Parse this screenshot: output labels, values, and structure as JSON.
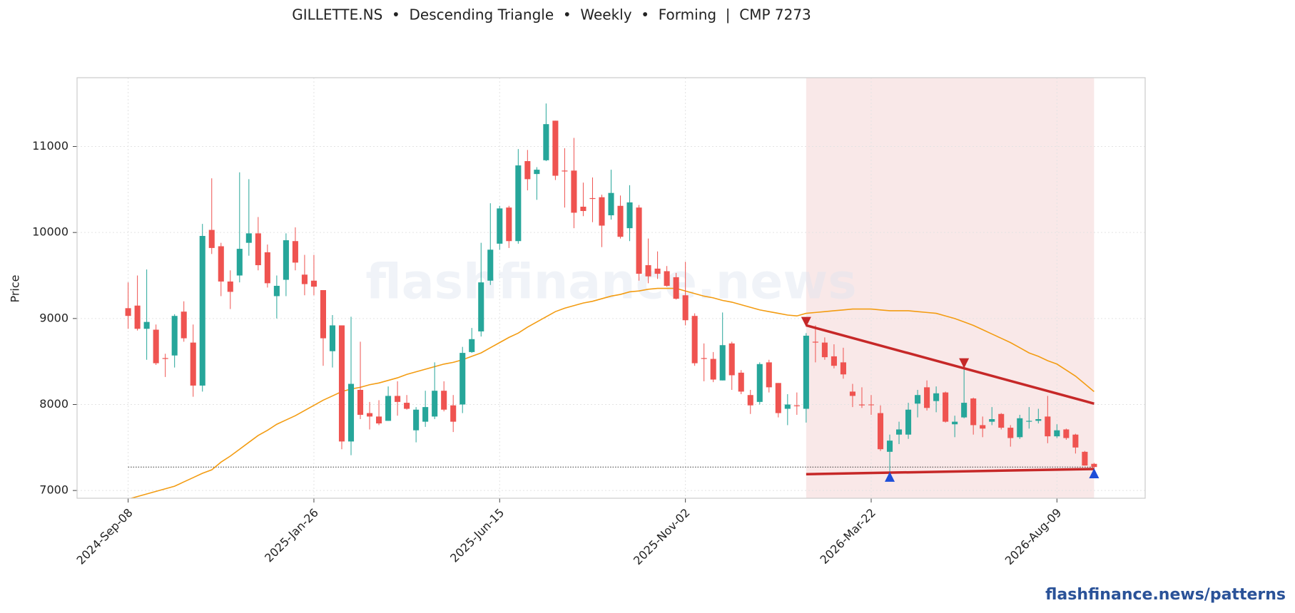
{
  "chart_data": {
    "type": "candlestick",
    "title": "GILLETTE.NS  •  Descending Triangle  •  Weekly  •  Forming  |  CMP 7273",
    "ylabel": "Price",
    "watermark": "flashfinance.news",
    "x": [
      "2024-Sep-08",
      "2024-Sep-15",
      "2024-Sep-22",
      "2024-Sep-29",
      "2024-Oct-06",
      "2024-Oct-13",
      "2024-Oct-20",
      "2024-Oct-27",
      "2024-Nov-03",
      "2024-Nov-10",
      "2024-Nov-17",
      "2024-Nov-24",
      "2024-Dec-01",
      "2024-Dec-08",
      "2024-Dec-15",
      "2024-Dec-22",
      "2024-Dec-29",
      "2025-Jan-05",
      "2025-Jan-12",
      "2025-Jan-19",
      "2025-Jan-26",
      "2025-Feb-02",
      "2025-Feb-09",
      "2025-Feb-16",
      "2025-Feb-23",
      "2025-Mar-02",
      "2025-Mar-09",
      "2025-Mar-16",
      "2025-Mar-23",
      "2025-Mar-30",
      "2025-Apr-06",
      "2025-Apr-13",
      "2025-Apr-20",
      "2025-Apr-27",
      "2025-May-04",
      "2025-May-11",
      "2025-May-18",
      "2025-May-25",
      "2025-Jun-01",
      "2025-Jun-08",
      "2025-Jun-15",
      "2025-Jun-22",
      "2025-Jun-29",
      "2025-Jul-06",
      "2025-Jul-13",
      "2025-Jul-20",
      "2025-Jul-27",
      "2025-Aug-03",
      "2025-Aug-10",
      "2025-Aug-17",
      "2025-Aug-24",
      "2025-Aug-31",
      "2025-Sep-07",
      "2025-Sep-14",
      "2025-Sep-21",
      "2025-Sep-28",
      "2025-Oct-05",
      "2025-Oct-12",
      "2025-Oct-19",
      "2025-Oct-26",
      "2025-Nov-02",
      "2025-Nov-09",
      "2025-Nov-16",
      "2025-Nov-23",
      "2025-Nov-30",
      "2025-Dec-07",
      "2025-Dec-14",
      "2025-Dec-21",
      "2025-Dec-28",
      "2026-Jan-04",
      "2026-Jan-11",
      "2026-Jan-18",
      "2026-Jan-25",
      "2026-Feb-01",
      "2026-Feb-08",
      "2026-Feb-15",
      "2026-Feb-22",
      "2026-Mar-01",
      "2026-Mar-08",
      "2026-Mar-15",
      "2026-Mar-22",
      "2026-Mar-29",
      "2026-Apr-05",
      "2026-Apr-12",
      "2026-Apr-19",
      "2026-Apr-26",
      "2026-May-03",
      "2026-May-10",
      "2026-May-17",
      "2026-May-24",
      "2026-May-31",
      "2026-Jun-07",
      "2026-Jun-14",
      "2026-Jun-21",
      "2026-Jun-28",
      "2026-Jul-05",
      "2026-Jul-12",
      "2026-Jul-19",
      "2026-Jul-26",
      "2026-Aug-02",
      "2026-Aug-09",
      "2026-Aug-16",
      "2026-Aug-23",
      "2026-Aug-30",
      "2026-Sep-06"
    ],
    "open": [
      9120,
      9150,
      8880,
      8870,
      8540,
      8570,
      9080,
      8720,
      8220,
      10030,
      9840,
      9430,
      9500,
      9880,
      9990,
      9770,
      9260,
      9450,
      9900,
      9510,
      9440,
      9330,
      8620,
      8920,
      7570,
      8170,
      7900,
      7860,
      7810,
      8100,
      8020,
      7700,
      7800,
      7860,
      8160,
      7990,
      8000,
      8610,
      8850,
      9440,
      9870,
      10290,
      9900,
      10830,
      10680,
      10840,
      11300,
      10720,
      10720,
      10300,
      10400,
      10410,
      10200,
      10310,
      10050,
      10290,
      9620,
      9580,
      9550,
      9480,
      9270,
      9030,
      8540,
      8530,
      8280,
      8710,
      8370,
      8110,
      8030,
      8490,
      8250,
      7950,
      7990,
      7950,
      8730,
      8720,
      8560,
      8490,
      8150,
      8000,
      8000,
      7900,
      7450,
      7650,
      7650,
      8010,
      8200,
      8040,
      8140,
      7770,
      7850,
      8070,
      7760,
      7800,
      7890,
      7730,
      7620,
      7800,
      7810,
      7860,
      7630,
      7710,
      7650,
      7450,
      7310
    ],
    "high": [
      9420,
      9500,
      9570,
      8930,
      8590,
      9050,
      9200,
      8930,
      10100,
      10630,
      9880,
      9560,
      10700,
      10620,
      10180,
      9860,
      9500,
      9990,
      10060,
      9740,
      9740,
      9330,
      9040,
      8920,
      9020,
      8730,
      8030,
      8050,
      8210,
      8270,
      8110,
      7970,
      8160,
      8490,
      8270,
      8110,
      8670,
      8890,
      9880,
      10340,
      10310,
      10310,
      10970,
      10960,
      10760,
      11500,
      11300,
      10980,
      11100,
      10580,
      10640,
      10440,
      10730,
      10430,
      10550,
      10320,
      9930,
      9780,
      9610,
      9530,
      9660,
      9060,
      8710,
      8610,
      9070,
      8730,
      8400,
      8170,
      8490,
      8520,
      8250,
      8120,
      8140,
      8830,
      8920,
      8780,
      8700,
      8660,
      8240,
      8200,
      8110,
      7990,
      7650,
      7800,
      8020,
      8170,
      8280,
      8210,
      8150,
      7870,
      8480,
      8080,
      7860,
      7970,
      7900,
      7760,
      7880,
      7970,
      7950,
      8100,
      7770,
      7720,
      7660,
      7460,
      7320
    ],
    "low": [
      8880,
      8860,
      8520,
      8460,
      8320,
      8430,
      8730,
      8090,
      8150,
      9750,
      9260,
      9110,
      9420,
      9730,
      9560,
      9360,
      9000,
      9260,
      9560,
      9270,
      9270,
      8450,
      8430,
      7480,
      7410,
      7830,
      7710,
      7760,
      7810,
      7870,
      7940,
      7560,
      7740,
      7830,
      7920,
      7680,
      7900,
      8600,
      8790,
      9390,
      9800,
      9820,
      9870,
      10490,
      10380,
      10830,
      10610,
      10290,
      10050,
      10190,
      10120,
      9830,
      10150,
      9930,
      9900,
      9440,
      9410,
      9460,
      9370,
      9220,
      8920,
      8450,
      8270,
      8260,
      8280,
      8170,
      8120,
      7890,
      8000,
      8140,
      7850,
      7760,
      7880,
      7790,
      8490,
      8520,
      8420,
      8300,
      7970,
      7960,
      7880,
      7460,
      7180,
      7540,
      7600,
      7850,
      7930,
      7910,
      7790,
      7620,
      7840,
      7650,
      7620,
      7760,
      7710,
      7510,
      7600,
      7720,
      7780,
      7550,
      7610,
      7590,
      7430,
      7290,
      7240
    ],
    "close": [
      9030,
      8880,
      8960,
      8480,
      8530,
      9030,
      8770,
      8220,
      9960,
      9820,
      9430,
      9310,
      9810,
      9990,
      9620,
      9410,
      9380,
      9910,
      9650,
      9400,
      9370,
      8770,
      8920,
      7570,
      8240,
      7880,
      7860,
      7780,
      8100,
      8030,
      7950,
      7940,
      7970,
      8160,
      7940,
      7800,
      8600,
      8760,
      9420,
      9800,
      10280,
      9900,
      10780,
      10620,
      10730,
      11260,
      10660,
      10710,
      10230,
      10250,
      10390,
      10080,
      10460,
      9950,
      10350,
      9520,
      9490,
      9520,
      9380,
      9230,
      8980,
      8480,
      8530,
      8290,
      8690,
      8340,
      8150,
      7990,
      8470,
      8200,
      7900,
      8000,
      7980,
      8800,
      8720,
      8550,
      8450,
      8350,
      8100,
      7990,
      7995,
      7480,
      7580,
      7710,
      7940,
      8110,
      7960,
      8130,
      7800,
      7800,
      8020,
      7760,
      7720,
      7830,
      7730,
      7610,
      7840,
      7810,
      7830,
      7630,
      7700,
      7610,
      7500,
      7290,
      7273
    ],
    "up_color": "#26a69a",
    "down_color": "#ef5350",
    "overlays": [
      {
        "type": "line",
        "color": "#f39c12",
        "values": [
          6900,
          6930,
          6960,
          6990,
          7020,
          7050,
          7100,
          7150,
          7200,
          7240,
          7330,
          7400,
          7480,
          7560,
          7640,
          7700,
          7770,
          7820,
          7870,
          7930,
          7990,
          8050,
          8100,
          8150,
          8180,
          8200,
          8230,
          8250,
          8280,
          8310,
          8350,
          8380,
          8410,
          8440,
          8470,
          8490,
          8520,
          8560,
          8600,
          8660,
          8720,
          8780,
          8830,
          8900,
          8960,
          9020,
          9080,
          9120,
          9150,
          9180,
          9200,
          9230,
          9260,
          9280,
          9310,
          9320,
          9340,
          9350,
          9350,
          9350,
          9320,
          9290,
          9260,
          9240,
          9210,
          9190,
          9160,
          9130,
          9100,
          9080,
          9060,
          9040,
          9030,
          9060,
          9070,
          9080,
          9090,
          9100,
          9110,
          9110,
          9110,
          9100,
          9090,
          9090,
          9090,
          9080,
          9070,
          9060,
          9030,
          9000,
          8960,
          8920,
          8870,
          8820,
          8770,
          8720,
          8660,
          8600,
          8560,
          8510,
          8470,
          8400,
          8330,
          8240,
          8150
        ]
      }
    ],
    "trendlines": [
      {
        "x": [
          "2026-Feb-01",
          "2026-Sep-06"
        ],
        "values": [
          8920,
          8010
        ],
        "color": "#c62828"
      },
      {
        "x": [
          "2026-Feb-01",
          "2026-Sep-06"
        ],
        "values": [
          7190,
          7250
        ],
        "color": "#c62828"
      }
    ],
    "markers": [
      {
        "x": "2026-Feb-01",
        "value": 8960,
        "shape": "triangle-down",
        "color": "#c62828"
      },
      {
        "x": "2026-May-31",
        "value": 8480,
        "shape": "triangle-down",
        "color": "#c62828"
      },
      {
        "x": "2026-Apr-05",
        "value": 7160,
        "shape": "triangle-up",
        "color": "#1d4ed8"
      },
      {
        "x": "2026-Sep-06",
        "value": 7200,
        "shape": "triangle-up",
        "color": "#1d4ed8"
      }
    ],
    "highlight": {
      "x": [
        "2026-Feb-01",
        "2026-Sep-06"
      ],
      "color": "#f9e8e8"
    },
    "hline": {
      "value": 7273,
      "color": "#333333",
      "style": "dotted"
    },
    "ylim": [
      6910,
      11800
    ],
    "yticks": [
      7000,
      8000,
      9000,
      10000,
      11000
    ],
    "xticks": [
      "2024-Sep-08",
      "2025-Jan-26",
      "2025-Jun-15",
      "2025-Nov-02",
      "2026-Mar-22",
      "2026-Aug-09"
    ],
    "grid": true
  },
  "footer": "flashfinance.news/patterns"
}
